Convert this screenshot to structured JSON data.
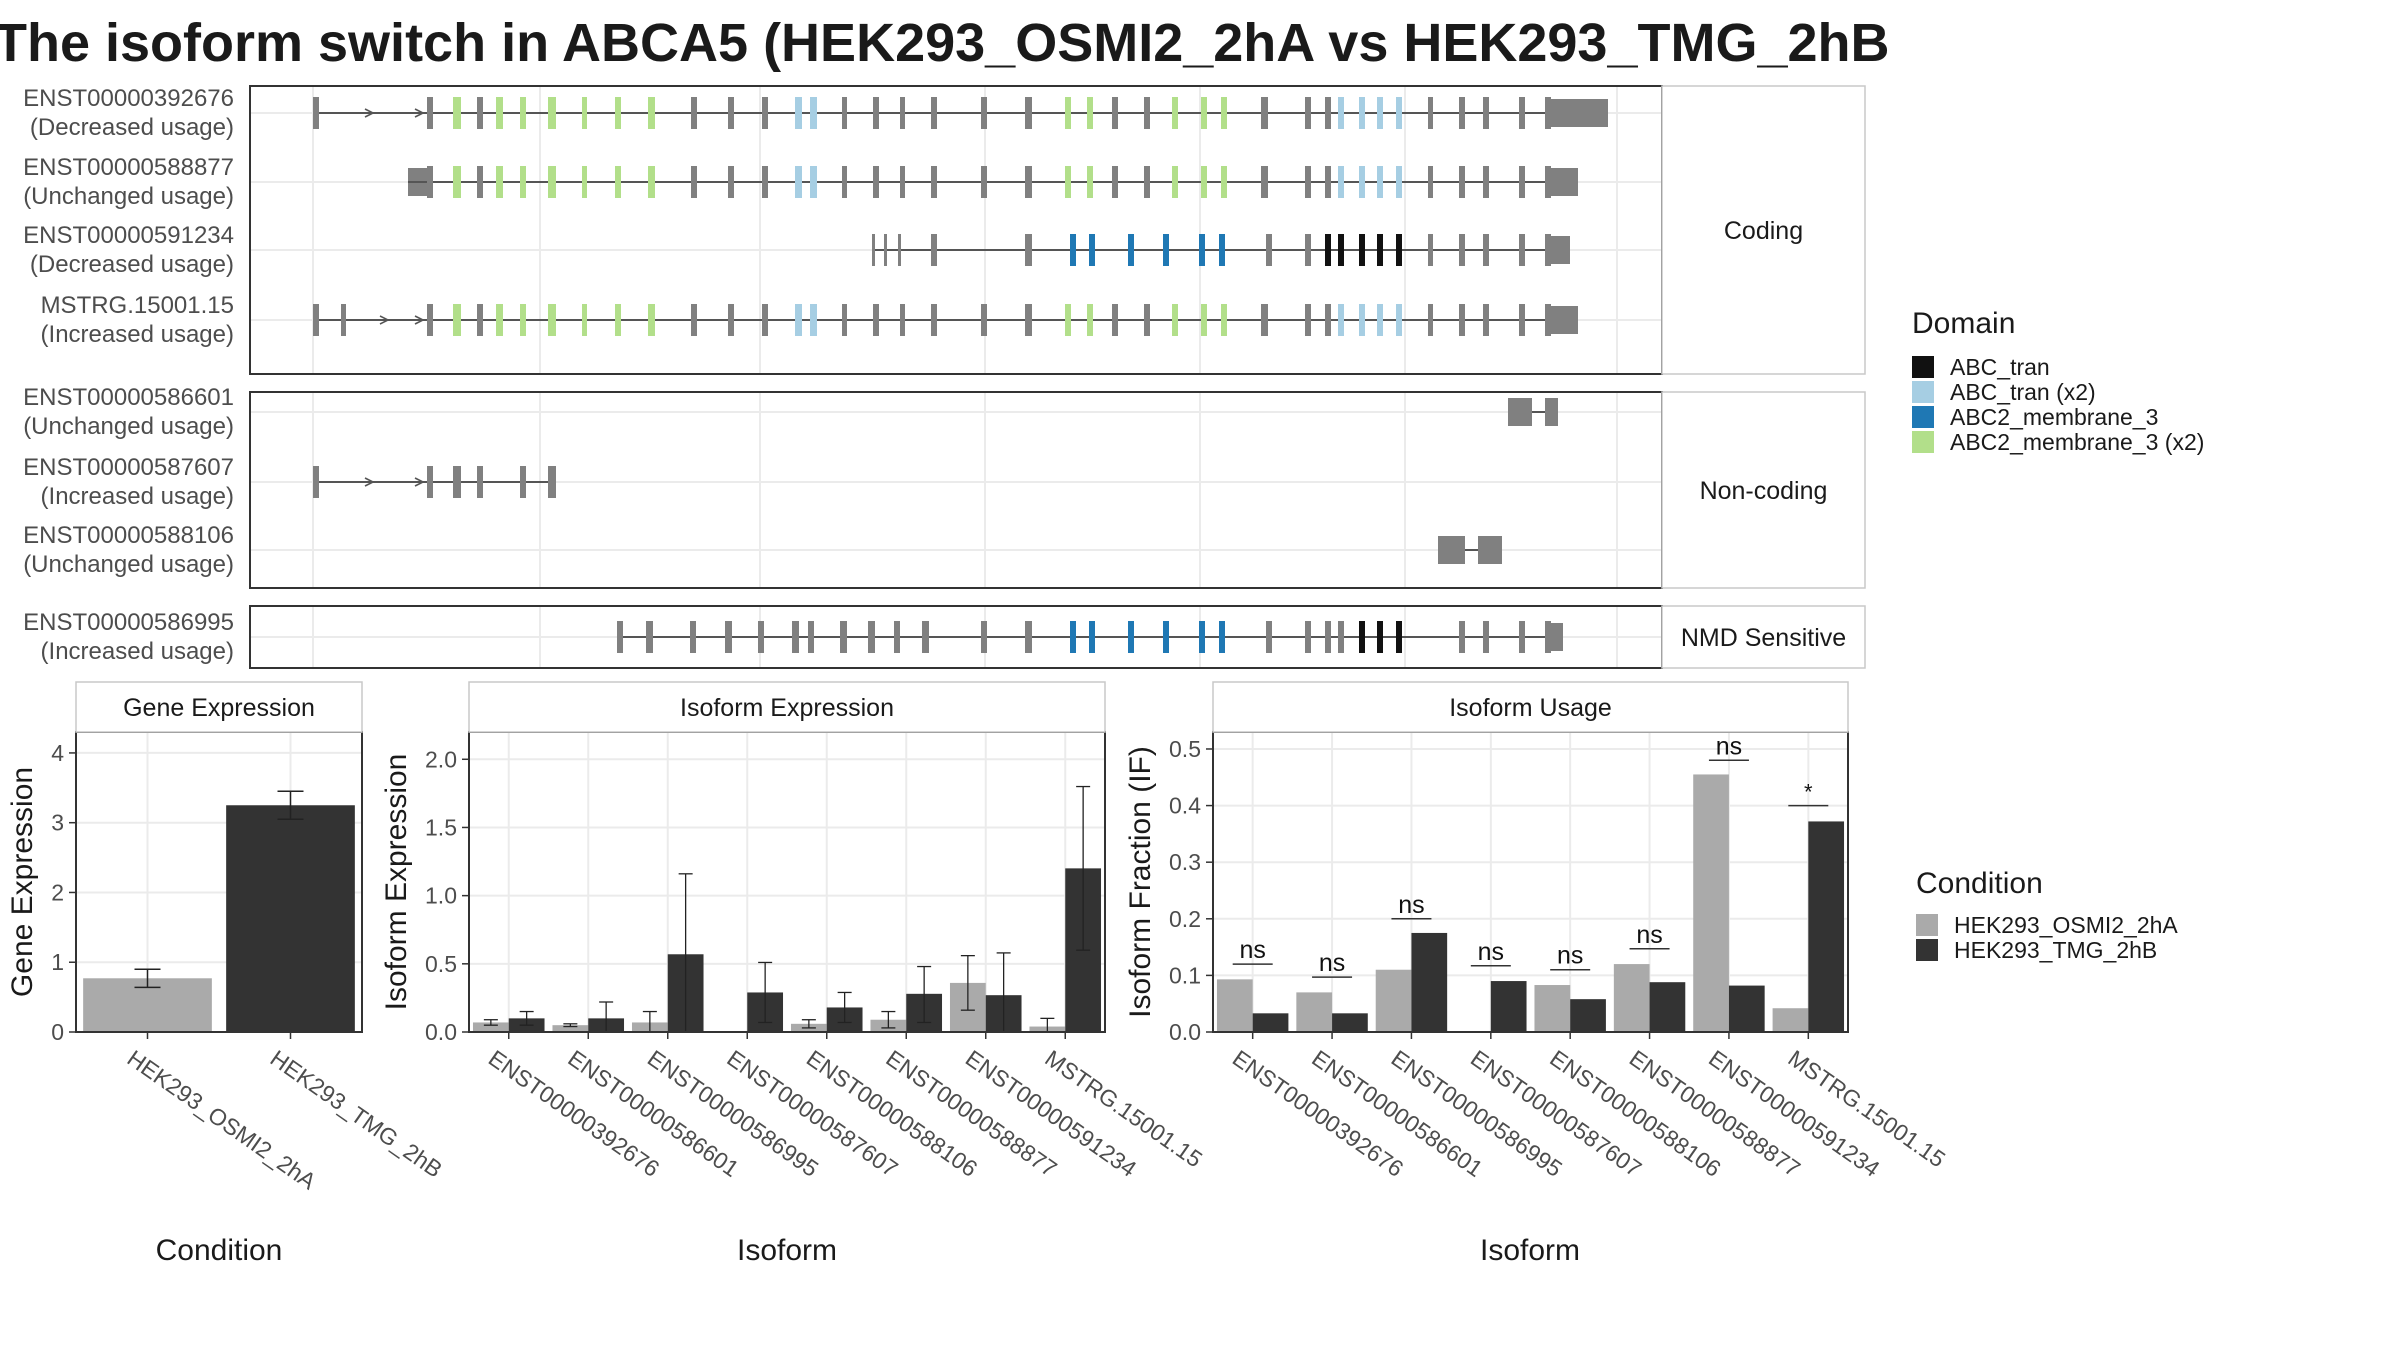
{
  "title": "The isoform switch in ABCA5 (HEK293_OSMI2_2hA vs HEK293_TMG_2hB",
  "colors": {
    "abc_tran": "#111111",
    "abc_tran_x2": "#a6cee3",
    "abc2_membrane_3": "#1f78b4",
    "abc2_membrane_3_x2": "#b2df8a",
    "exon": "#808080",
    "cond_a": "#aaaaaa",
    "cond_b": "#333333"
  },
  "structure": {
    "panels": [
      {
        "label": "Coding",
        "isoforms": [
          {
            "id": "ENST00000392676",
            "usage": "(Decreased usage)"
          },
          {
            "id": "ENST00000588877",
            "usage": "(Unchanged usage)"
          },
          {
            "id": "ENST00000591234",
            "usage": "(Decreased usage)"
          },
          {
            "id": "MSTRG.15001.15",
            "usage": "(Increased usage)"
          }
        ]
      },
      {
        "label": "Non-coding",
        "isoforms": [
          {
            "id": "ENST00000586601",
            "usage": "(Unchanged usage)"
          },
          {
            "id": "ENST00000587607",
            "usage": "(Increased usage)"
          },
          {
            "id": "ENST00000588106",
            "usage": "(Unchanged usage)"
          }
        ]
      },
      {
        "label": "NMD Sensitive",
        "isoforms": [
          {
            "id": "ENST00000586995",
            "usage": "(Increased usage)"
          }
        ]
      }
    ]
  },
  "legend_domain": {
    "title": "Domain",
    "items": [
      {
        "label": "ABC_tran",
        "color_key": "abc_tran"
      },
      {
        "label": "ABC_tran (x2)",
        "color_key": "abc_tran_x2"
      },
      {
        "label": "ABC2_membrane_3",
        "color_key": "abc2_membrane_3"
      },
      {
        "label": "ABC2_membrane_3 (x2)",
        "color_key": "abc2_membrane_3_x2"
      }
    ]
  },
  "legend_condition": {
    "title": "Condition",
    "items": [
      {
        "label": "HEK293_OSMI2_2hA",
        "color_key": "cond_a"
      },
      {
        "label": "HEK293_TMG_2hB",
        "color_key": "cond_b"
      }
    ]
  },
  "chart_data": [
    {
      "type": "bar",
      "title": "Gene Expression",
      "xlabel": "Condition",
      "ylabel": "Gene Expression",
      "ylim": [
        0,
        4.3
      ],
      "yticks": [
        0,
        1,
        2,
        3,
        4
      ],
      "categories": [
        "HEK293_OSMI2_2hA",
        "HEK293_TMG_2hB"
      ],
      "values": [
        0.77,
        3.25
      ],
      "errors": [
        [
          0.64,
          0.9
        ],
        [
          3.05,
          3.45
        ]
      ]
    },
    {
      "type": "bar",
      "title": "Isoform Expression",
      "xlabel": "Isoform",
      "ylabel": "Isoform Expression",
      "ylim": [
        0,
        2.2
      ],
      "yticks": [
        0.0,
        0.5,
        1.0,
        1.5,
        2.0
      ],
      "categories": [
        "ENST00000392676",
        "ENST00000586601",
        "ENST00000586995",
        "ENST00000587607",
        "ENST00000588106",
        "ENST00000588877",
        "ENST00000591234",
        "MSTRG.15001.15"
      ],
      "series": [
        {
          "name": "HEK293_OSMI2_2hA",
          "values": [
            0.07,
            0.05,
            0.07,
            0.0,
            0.06,
            0.09,
            0.36,
            0.04
          ],
          "errors": [
            [
              0.05,
              0.09
            ],
            [
              0.04,
              0.06
            ],
            [
              0.0,
              0.15
            ],
            [
              0.0,
              0.0
            ],
            [
              0.03,
              0.09
            ],
            [
              0.03,
              0.15
            ],
            [
              0.16,
              0.56
            ],
            [
              0.0,
              0.1
            ]
          ]
        },
        {
          "name": "HEK293_TMG_2hB",
          "values": [
            0.1,
            0.1,
            0.57,
            0.29,
            0.18,
            0.28,
            0.27,
            1.2
          ],
          "errors": [
            [
              0.05,
              0.15
            ],
            [
              0.0,
              0.22
            ],
            [
              0.0,
              1.16
            ],
            [
              0.07,
              0.51
            ],
            [
              0.07,
              0.29
            ],
            [
              0.07,
              0.48
            ],
            [
              0.0,
              0.58
            ],
            [
              0.6,
              1.8
            ]
          ]
        }
      ]
    },
    {
      "type": "bar",
      "title": "Isoform Usage",
      "xlabel": "Isoform",
      "ylabel": "Isoform Fraction (IF)",
      "ylim": [
        0,
        0.53
      ],
      "yticks": [
        0.0,
        0.1,
        0.2,
        0.3,
        0.4,
        0.5
      ],
      "categories": [
        "ENST00000392676",
        "ENST00000586601",
        "ENST00000586995",
        "ENST00000587607",
        "ENST00000588106",
        "ENST00000588877",
        "ENST00000591234",
        "MSTRG.15001.15"
      ],
      "series": [
        {
          "name": "HEK293_OSMI2_2hA",
          "values": [
            0.093,
            0.07,
            0.11,
            0.0,
            0.083,
            0.12,
            0.455,
            0.042
          ]
        },
        {
          "name": "HEK293_TMG_2hB",
          "values": [
            0.033,
            0.033,
            0.175,
            0.09,
            0.058,
            0.088,
            0.082,
            0.372
          ]
        }
      ],
      "significance": [
        {
          "label": "ns",
          "y": 0.12
        },
        {
          "label": "ns",
          "y": 0.097
        },
        {
          "label": "ns",
          "y": 0.2
        },
        {
          "label": "ns",
          "y": 0.117
        },
        {
          "label": "ns",
          "y": 0.11
        },
        {
          "label": "ns",
          "y": 0.147
        },
        {
          "label": "ns",
          "y": 0.48
        },
        {
          "label": "*",
          "y": 0.4
        }
      ]
    }
  ]
}
